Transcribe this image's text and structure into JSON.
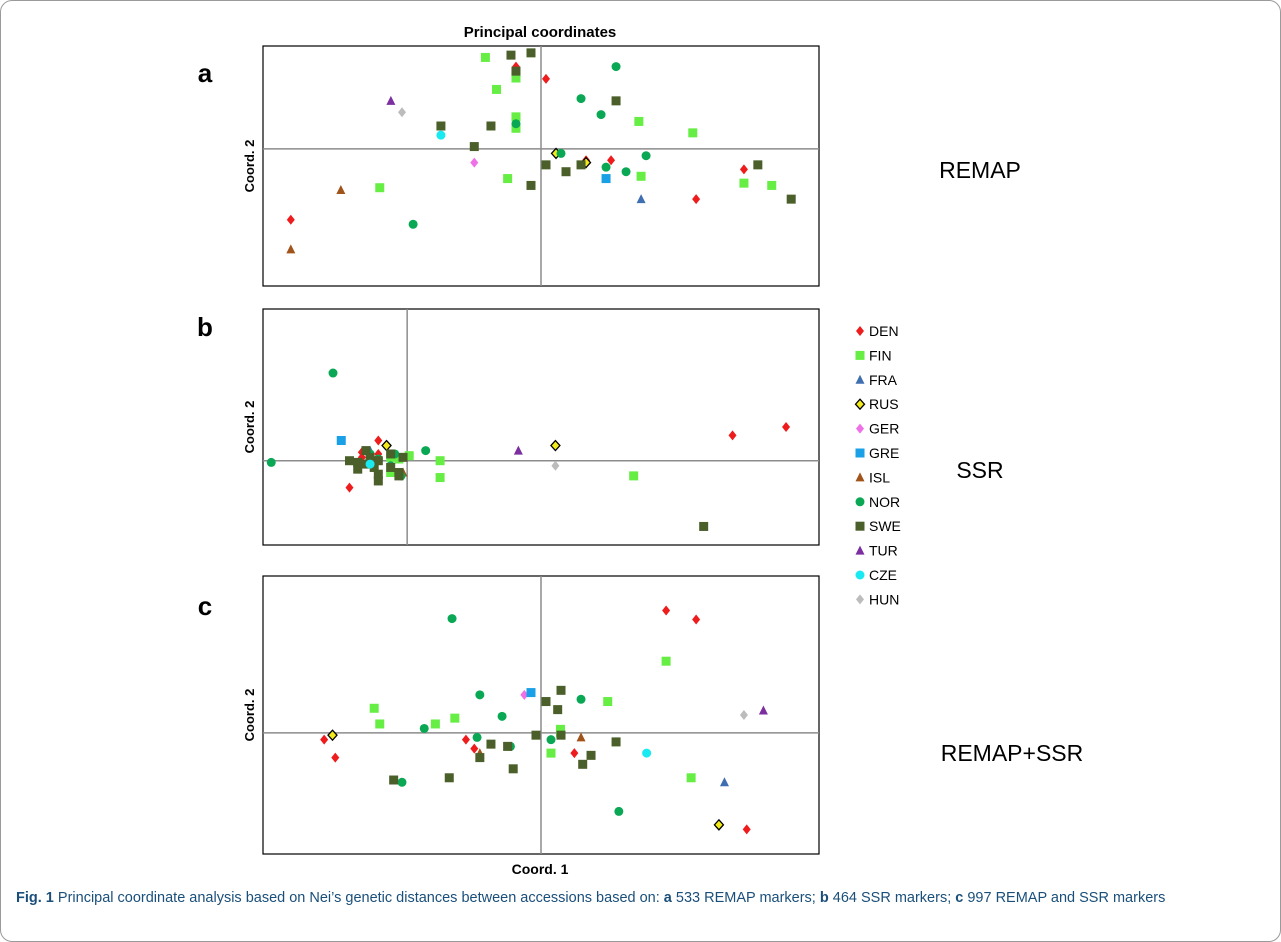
{
  "figure": {
    "top_title": "Principal coordinates",
    "x_axis_label": "Coord. 1",
    "caption_label": "Fig. 1",
    "caption_text_1": " Principal coordinate analysis based on Nei’s genetic distances between accessions based on: ",
    "caption_a": "a",
    "caption_text_2": " 533 REMAP markers; ",
    "caption_b": "b",
    "caption_text_3": " 464 SSR markers; ",
    "caption_c": "c",
    "caption_text_4": " 997 REMAP and SSR markers"
  },
  "legend": [
    {
      "name": "DEN",
      "shape": "diamond",
      "color": "#ee1c1c"
    },
    {
      "name": "FIN",
      "shape": "square",
      "color": "#66ee44"
    },
    {
      "name": "FRA",
      "shape": "triangle",
      "color": "#3f6fb0"
    },
    {
      "name": "RUS",
      "shape": "diamond-outline",
      "color": "#f3ea1c"
    },
    {
      "name": "GER",
      "shape": "diamond",
      "color": "#f070e8"
    },
    {
      "name": "GRE",
      "shape": "square",
      "color": "#19a0e6"
    },
    {
      "name": "ISL",
      "shape": "triangle",
      "color": "#a0531a"
    },
    {
      "name": "NOR",
      "shape": "circle",
      "color": "#0aa855"
    },
    {
      "name": "SWE",
      "shape": "square",
      "color": "#4a5f2a"
    },
    {
      "name": "TUR",
      "shape": "triangle",
      "color": "#7b2fa0"
    },
    {
      "name": "CZE",
      "shape": "circle",
      "color": "#19eaf2"
    },
    {
      "name": "HUN",
      "shape": "diamond",
      "color": "#bcbcbc"
    }
  ],
  "chart_data": [
    {
      "type": "scatter",
      "panel": "a",
      "title": "REMAP",
      "xlabel": "",
      "ylabel": "Coord. 2",
      "xlim": [
        -5,
        5
      ],
      "ylim": [
        -3,
        2.25
      ],
      "grid": false,
      "points": [
        {
          "s": "DEN",
          "x": 0.09,
          "y": 1.53
        },
        {
          "s": "DEN",
          "x": -0.45,
          "y": 1.8
        },
        {
          "s": "DEN",
          "x": 0.81,
          "y": -0.25
        },
        {
          "s": "DEN",
          "x": 1.26,
          "y": -0.25
        },
        {
          "s": "DEN",
          "x": 2.79,
          "y": -1.1
        },
        {
          "s": "DEN",
          "x": 3.65,
          "y": -0.45
        },
        {
          "s": "DEN",
          "x": -4.5,
          "y": -1.55
        },
        {
          "s": "FIN",
          "x": -1.0,
          "y": 2.0
        },
        {
          "s": "FIN",
          "x": -0.8,
          "y": 1.3
        },
        {
          "s": "FIN",
          "x": -0.45,
          "y": 1.55
        },
        {
          "s": "FIN",
          "x": -0.45,
          "y": 0.45
        },
        {
          "s": "FIN",
          "x": -0.6,
          "y": -0.65
        },
        {
          "s": "FIN",
          "x": -2.9,
          "y": -0.85
        },
        {
          "s": "FIN",
          "x": 1.76,
          "y": 0.6
        },
        {
          "s": "FIN",
          "x": 1.8,
          "y": -0.6
        },
        {
          "s": "FIN",
          "x": 2.73,
          "y": 0.35
        },
        {
          "s": "FIN",
          "x": 3.65,
          "y": -0.75
        },
        {
          "s": "FIN",
          "x": 4.15,
          "y": -0.8
        },
        {
          "s": "FIN",
          "x": -0.45,
          "y": 0.7
        },
        {
          "s": "FRA",
          "x": 1.8,
          "y": -1.1
        },
        {
          "s": "RUS",
          "x": 0.27,
          "y": -0.1
        },
        {
          "s": "RUS",
          "x": 0.81,
          "y": -0.3
        },
        {
          "s": "GER",
          "x": -1.2,
          "y": -0.3
        },
        {
          "s": "GRE",
          "x": 1.17,
          "y": -0.65
        },
        {
          "s": "ISL",
          "x": -3.6,
          "y": -0.9
        },
        {
          "s": "ISL",
          "x": -4.5,
          "y": -2.2
        },
        {
          "s": "NOR",
          "x": 1.35,
          "y": 1.8
        },
        {
          "s": "NOR",
          "x": 0.72,
          "y": 1.1
        },
        {
          "s": "NOR",
          "x": 1.08,
          "y": 0.75
        },
        {
          "s": "NOR",
          "x": -0.45,
          "y": 0.55
        },
        {
          "s": "NOR",
          "x": 0.36,
          "y": -0.1
        },
        {
          "s": "NOR",
          "x": 1.17,
          "y": -0.4
        },
        {
          "s": "NOR",
          "x": 1.53,
          "y": -0.5
        },
        {
          "s": "NOR",
          "x": 1.89,
          "y": -0.15
        },
        {
          "s": "NOR",
          "x": -2.3,
          "y": -1.65
        },
        {
          "s": "SWE",
          "x": -0.45,
          "y": 1.7
        },
        {
          "s": "SWE",
          "x": -0.18,
          "y": 2.1
        },
        {
          "s": "SWE",
          "x": -0.54,
          "y": 2.05
        },
        {
          "s": "SWE",
          "x": 1.35,
          "y": 1.05
        },
        {
          "s": "SWE",
          "x": -1.8,
          "y": 0.5
        },
        {
          "s": "SWE",
          "x": -0.9,
          "y": 0.5
        },
        {
          "s": "SWE",
          "x": -1.2,
          "y": 0.05
        },
        {
          "s": "SWE",
          "x": 0.45,
          "y": -0.5
        },
        {
          "s": "SWE",
          "x": 0.09,
          "y": -0.35
        },
        {
          "s": "SWE",
          "x": 0.72,
          "y": -0.35
        },
        {
          "s": "SWE",
          "x": -0.18,
          "y": -0.8
        },
        {
          "s": "SWE",
          "x": 3.9,
          "y": -0.35
        },
        {
          "s": "SWE",
          "x": 4.5,
          "y": -1.1
        },
        {
          "s": "TUR",
          "x": -2.7,
          "y": 1.05
        },
        {
          "s": "CZE",
          "x": -1.8,
          "y": 0.3
        },
        {
          "s": "HUN",
          "x": -2.5,
          "y": 0.8
        }
      ]
    },
    {
      "type": "scatter",
      "panel": "b",
      "title": "SSR",
      "xlabel": "",
      "ylabel": "Coord. 2",
      "xlim": [
        -3.5,
        10
      ],
      "ylim": [
        -2.5,
        4.5
      ],
      "grid": false,
      "points": [
        {
          "s": "DEN",
          "x": -0.7,
          "y": 0.6
        },
        {
          "s": "DEN",
          "x": -1.1,
          "y": 0.25
        },
        {
          "s": "DEN",
          "x": -1.2,
          "y": -0.1
        },
        {
          "s": "DEN",
          "x": -1.1,
          "y": 0.1
        },
        {
          "s": "DEN",
          "x": -0.7,
          "y": 0.2
        },
        {
          "s": "DEN",
          "x": -1.4,
          "y": -0.8
        },
        {
          "s": "DEN",
          "x": 9.2,
          "y": 1.0
        },
        {
          "s": "DEN",
          "x": 7.9,
          "y": 0.75
        },
        {
          "s": "FIN",
          "x": -0.4,
          "y": 0.1
        },
        {
          "s": "FIN",
          "x": -0.2,
          "y": 0.05
        },
        {
          "s": "FIN",
          "x": 0.05,
          "y": 0.15
        },
        {
          "s": "FIN",
          "x": 0.8,
          "y": 0.0
        },
        {
          "s": "FIN",
          "x": 0.8,
          "y": -0.5
        },
        {
          "s": "FIN",
          "x": -0.4,
          "y": -0.35
        },
        {
          "s": "FIN",
          "x": 5.5,
          "y": -0.45
        },
        {
          "s": "FRA",
          "x": -0.9,
          "y": 0.3
        },
        {
          "s": "RUS",
          "x": -0.5,
          "y": 0.45
        },
        {
          "s": "RUS",
          "x": 3.6,
          "y": 0.45
        },
        {
          "s": "GER",
          "x": -1.15,
          "y": -0.15
        },
        {
          "s": "GRE",
          "x": -1.6,
          "y": 0.6
        },
        {
          "s": "ISL",
          "x": -0.1,
          "y": -0.35
        },
        {
          "s": "NOR",
          "x": -1.8,
          "y": 2.6
        },
        {
          "s": "NOR",
          "x": -3.3,
          "y": -0.05
        },
        {
          "s": "NOR",
          "x": 0.45,
          "y": 0.3
        },
        {
          "s": "NOR",
          "x": -0.3,
          "y": 0.2
        },
        {
          "s": "NOR",
          "x": -0.4,
          "y": -0.15
        },
        {
          "s": "NOR",
          "x": -0.15,
          "y": -0.45
        },
        {
          "s": "NOR",
          "x": -0.9,
          "y": 0.2
        },
        {
          "s": "NOR",
          "x": -0.7,
          "y": 0.05
        },
        {
          "s": "SWE",
          "x": -1.4,
          "y": 0.0
        },
        {
          "s": "SWE",
          "x": -1.2,
          "y": -0.05
        },
        {
          "s": "SWE",
          "x": -1.0,
          "y": -0.1
        },
        {
          "s": "SWE",
          "x": -0.8,
          "y": -0.2
        },
        {
          "s": "SWE",
          "x": -0.7,
          "y": 0.0
        },
        {
          "s": "SWE",
          "x": -0.4,
          "y": -0.2
        },
        {
          "s": "SWE",
          "x": -0.2,
          "y": -0.35
        },
        {
          "s": "SWE",
          "x": -0.1,
          "y": 0.1
        },
        {
          "s": "SWE",
          "x": -0.4,
          "y": 0.2
        },
        {
          "s": "SWE",
          "x": -0.7,
          "y": -0.4
        },
        {
          "s": "SWE",
          "x": -0.9,
          "y": 0.1
        },
        {
          "s": "SWE",
          "x": -1.0,
          "y": 0.3
        },
        {
          "s": "SWE",
          "x": -1.2,
          "y": -0.25
        },
        {
          "s": "SWE",
          "x": -0.7,
          "y": -0.6
        },
        {
          "s": "SWE",
          "x": -0.2,
          "y": -0.45
        },
        {
          "s": "SWE",
          "x": 7.2,
          "y": -1.95
        },
        {
          "s": "TUR",
          "x": 2.7,
          "y": 0.3
        },
        {
          "s": "CZE",
          "x": -0.9,
          "y": -0.1
        },
        {
          "s": "HUN",
          "x": 3.6,
          "y": -0.15
        }
      ]
    },
    {
      "type": "scatter",
      "panel": "c",
      "title": "REMAP+SSR",
      "xlabel": "Coord. 1",
      "ylabel": "Coord. 2",
      "xlim": [
        -5,
        5
      ],
      "ylim": [
        -2.7,
        3.5
      ],
      "grid": false,
      "points": [
        {
          "s": "DEN",
          "x": 2.25,
          "y": 2.73
        },
        {
          "s": "DEN",
          "x": 2.79,
          "y": 2.53
        },
        {
          "s": "DEN",
          "x": -1.35,
          "y": -0.15
        },
        {
          "s": "DEN",
          "x": -1.2,
          "y": -0.35
        },
        {
          "s": "DEN",
          "x": 0.6,
          "y": -0.45
        },
        {
          "s": "DEN",
          "x": -3.9,
          "y": -0.15
        },
        {
          "s": "DEN",
          "x": -3.7,
          "y": -0.55
        },
        {
          "s": "DEN",
          "x": 3.7,
          "y": -2.15
        },
        {
          "s": "FIN",
          "x": -3.0,
          "y": 0.55
        },
        {
          "s": "FIN",
          "x": -2.9,
          "y": 0.2
        },
        {
          "s": "FIN",
          "x": -1.9,
          "y": 0.2
        },
        {
          "s": "FIN",
          "x": -1.55,
          "y": 0.33
        },
        {
          "s": "FIN",
          "x": 0.35,
          "y": 0.08
        },
        {
          "s": "FIN",
          "x": 0.35,
          "y": 0.0
        },
        {
          "s": "FIN",
          "x": 1.2,
          "y": 0.7
        },
        {
          "s": "FIN",
          "x": 2.25,
          "y": 1.6
        },
        {
          "s": "FIN",
          "x": 0.18,
          "y": -0.45
        },
        {
          "s": "FIN",
          "x": 2.7,
          "y": -1.0
        },
        {
          "s": "FRA",
          "x": 3.3,
          "y": -1.1
        },
        {
          "s": "RUS",
          "x": -3.75,
          "y": -0.05
        },
        {
          "s": "RUS",
          "x": 3.2,
          "y": -2.05
        },
        {
          "s": "GER",
          "x": -0.3,
          "y": 0.85
        },
        {
          "s": "GRE",
          "x": -0.18,
          "y": 0.9
        },
        {
          "s": "ISL",
          "x": 0.72,
          "y": -0.1
        },
        {
          "s": "ISL",
          "x": -1.1,
          "y": -0.45
        },
        {
          "s": "NOR",
          "x": -1.6,
          "y": 2.55
        },
        {
          "s": "NOR",
          "x": -1.1,
          "y": 0.85
        },
        {
          "s": "NOR",
          "x": -0.7,
          "y": 0.37
        },
        {
          "s": "NOR",
          "x": -2.1,
          "y": 0.1
        },
        {
          "s": "NOR",
          "x": -1.15,
          "y": -0.1
        },
        {
          "s": "NOR",
          "x": -0.55,
          "y": -0.3
        },
        {
          "s": "NOR",
          "x": 0.18,
          "y": -0.15
        },
        {
          "s": "NOR",
          "x": 0.72,
          "y": 0.75
        },
        {
          "s": "NOR",
          "x": -2.5,
          "y": -1.1
        },
        {
          "s": "NOR",
          "x": 1.4,
          "y": -1.75
        },
        {
          "s": "SWE",
          "x": 0.09,
          "y": 0.7
        },
        {
          "s": "SWE",
          "x": 0.36,
          "y": 0.95
        },
        {
          "s": "SWE",
          "x": 0.3,
          "y": 0.52
        },
        {
          "s": "SWE",
          "x": -0.09,
          "y": -0.05
        },
        {
          "s": "SWE",
          "x": 0.36,
          "y": -0.05
        },
        {
          "s": "SWE",
          "x": -0.9,
          "y": -0.25
        },
        {
          "s": "SWE",
          "x": -1.1,
          "y": -0.55
        },
        {
          "s": "SWE",
          "x": -0.6,
          "y": -0.3
        },
        {
          "s": "SWE",
          "x": 0.9,
          "y": -0.5
        },
        {
          "s": "SWE",
          "x": 0.75,
          "y": -0.7
        },
        {
          "s": "SWE",
          "x": 1.35,
          "y": -0.2
        },
        {
          "s": "SWE",
          "x": -0.5,
          "y": -0.8
        },
        {
          "s": "SWE",
          "x": -2.65,
          "y": -1.05
        },
        {
          "s": "SWE",
          "x": -1.65,
          "y": -1.0
        },
        {
          "s": "TUR",
          "x": 4.0,
          "y": 0.5
        },
        {
          "s": "CZE",
          "x": 1.9,
          "y": -0.45
        },
        {
          "s": "HUN",
          "x": 3.65,
          "y": 0.4
        }
      ]
    }
  ]
}
